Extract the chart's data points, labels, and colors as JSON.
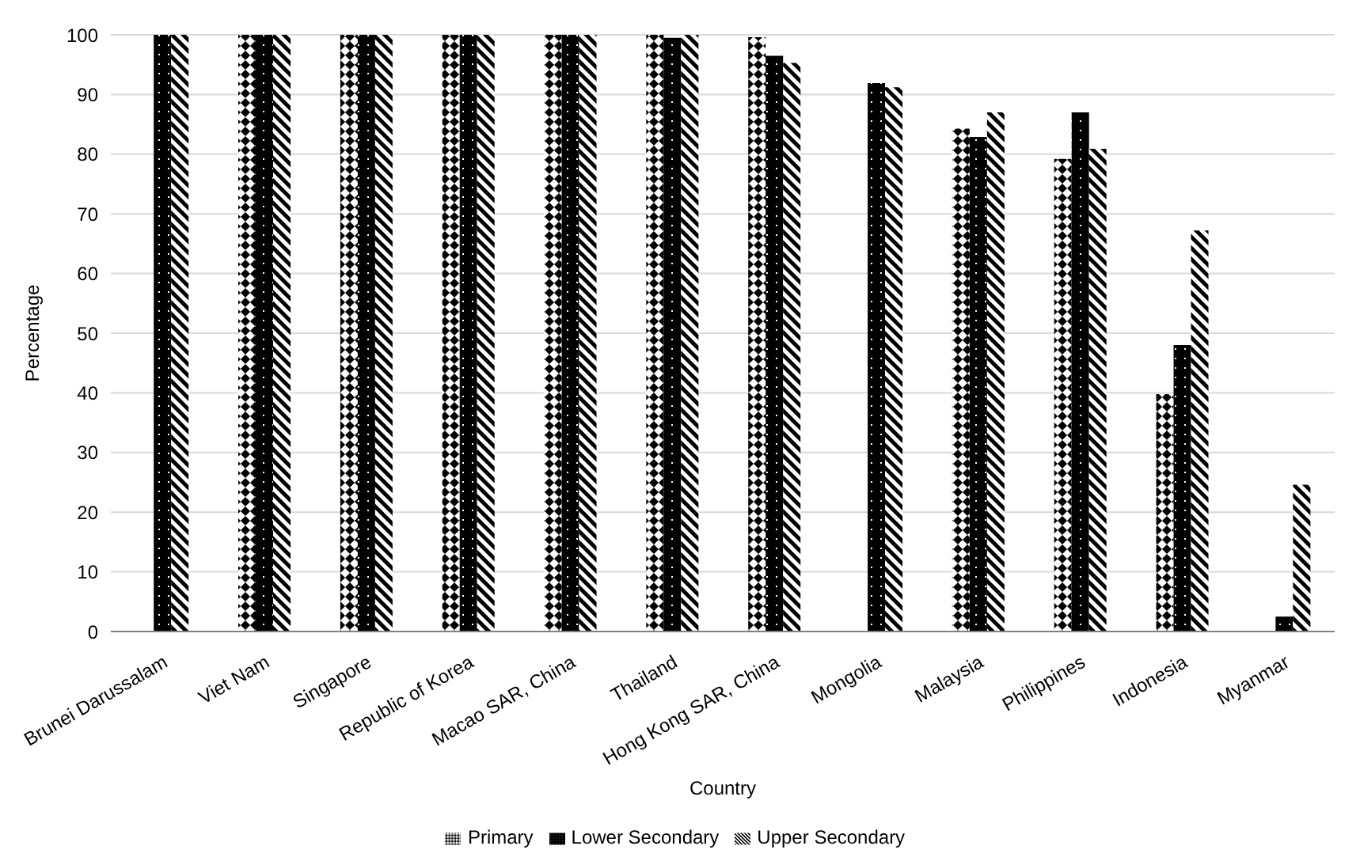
{
  "chart_data": {
    "type": "bar",
    "xlabel": "Country",
    "ylabel": "Percentage",
    "categories": [
      "Brunei Darussalam",
      "Viet Nam",
      "Singapore",
      "Republic of Korea",
      "Macao SAR, China",
      "Thailand",
      "Hong Kong SAR, China",
      "Mongolia",
      "Malaysia",
      "Philippines",
      "Indonesia",
      "Myanmar"
    ],
    "series": [
      {
        "name": "Primary",
        "color": "#000000",
        "values": [
          null,
          100,
          100,
          100,
          100,
          100,
          99.6,
          null,
          84.3,
          79.2,
          39.8,
          0
        ]
      },
      {
        "name": "Lower Secondary",
        "color": "#000000",
        "values": [
          100,
          100,
          100,
          100,
          100,
          99.5,
          96.5,
          91.9,
          82.9,
          87.0,
          48.0,
          2.5
        ]
      },
      {
        "name": "Upper Secondary",
        "color": "#000000",
        "values": [
          100,
          100,
          100,
          100,
          100,
          100,
          95.3,
          91.2,
          87.0,
          80.9,
          67.2,
          24.6
        ]
      }
    ],
    "ylim": [
      0,
      100
    ],
    "yticks": [
      0,
      10,
      20,
      30,
      40,
      50,
      60,
      70,
      80,
      90,
      100
    ],
    "grid": "y",
    "legend": "bottom"
  }
}
